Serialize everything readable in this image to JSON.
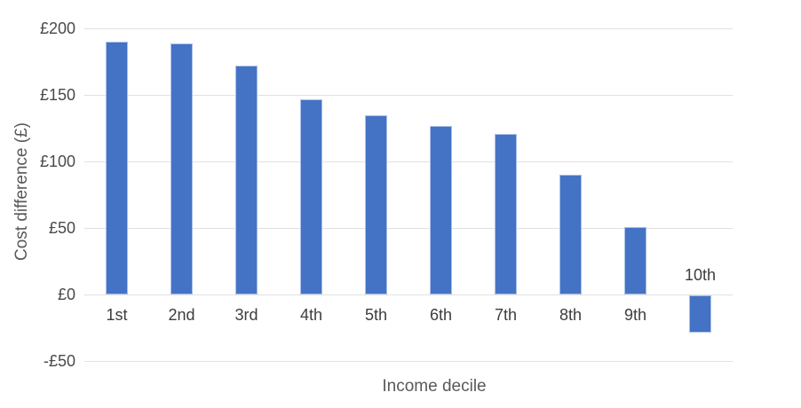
{
  "chart_data": {
    "type": "bar",
    "title": "",
    "xlabel": "Income decile",
    "ylabel": "Cost difference (£)",
    "categories": [
      "1st",
      "2nd",
      "3rd",
      "4th",
      "5th",
      "6th",
      "7th",
      "8th",
      "9th",
      "10th"
    ],
    "values": [
      190,
      189,
      172,
      147,
      135,
      127,
      121,
      90,
      51,
      -28
    ],
    "ylim": [
      -50,
      200
    ],
    "yticks": [
      {
        "value": 200,
        "label": "£200"
      },
      {
        "value": 150,
        "label": "£150"
      },
      {
        "value": 100,
        "label": "£100"
      },
      {
        "value": 50,
        "label": "£50"
      },
      {
        "value": 0,
        "label": "£0"
      },
      {
        "value": -50,
        "label": "-£50"
      }
    ],
    "grid": true,
    "legend": false,
    "colors": {
      "bar_fill": "#4472c4",
      "bar_border": "#a9c0e8",
      "gridline": "#e1e1e1",
      "y_tick_label": "#4a4a4a",
      "x_cat_label": "#3d3d3d",
      "axis_title": "#58595b"
    }
  }
}
